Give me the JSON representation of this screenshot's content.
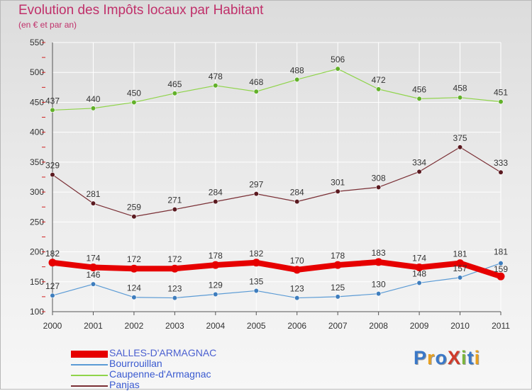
{
  "title": "Evolution des Impôts locaux par Habitant",
  "subtitle": "(en € et par an)",
  "logo": {
    "text": "ProXiti",
    "colors": [
      "#3a78c8",
      "#e8a020",
      "#3a78c8",
      "#d03a2a",
      "#7ab53a",
      "#3a78c8",
      "#e8a020"
    ]
  },
  "chart_data": {
    "type": "line",
    "title": "Evolution des Impôts locaux par Habitant",
    "subtitle": "(en € et par an)",
    "xlabel": "",
    "ylabel": "",
    "categories": [
      "2000",
      "2001",
      "2002",
      "2003",
      "2004",
      "2005",
      "2006",
      "2007",
      "2008",
      "2009",
      "2010",
      "2011"
    ],
    "ylim": [
      100,
      550
    ],
    "yticks": [
      100,
      150,
      200,
      250,
      300,
      350,
      400,
      450,
      500,
      550
    ],
    "grid": true,
    "legend_position": "bottom-left",
    "series": [
      {
        "name": "SALLES-D'ARMAGNAC",
        "color": "#e60000",
        "marker": "#e60000",
        "style": "thick",
        "values": [
          182,
          174,
          172,
          172,
          178,
          182,
          170,
          178,
          183,
          174,
          181,
          159
        ]
      },
      {
        "name": "Bourrouillan",
        "color": "#5b9bd5",
        "marker": "#3e7dbd",
        "style": "thin",
        "values": [
          127,
          146,
          124,
          123,
          129,
          135,
          123,
          125,
          130,
          148,
          157,
          181
        ]
      },
      {
        "name": "Caupenne-d'Armagnac",
        "color": "#8fd44a",
        "marker": "#62b02a",
        "style": "thin",
        "values": [
          437,
          440,
          450,
          465,
          478,
          468,
          488,
          506,
          472,
          456,
          458,
          451
        ]
      },
      {
        "name": "Panjas",
        "color": "#7a2f35",
        "marker": "#5a1a20",
        "style": "thin",
        "values": [
          329,
          281,
          259,
          271,
          284,
          297,
          284,
          301,
          308,
          334,
          375,
          333
        ]
      }
    ]
  }
}
